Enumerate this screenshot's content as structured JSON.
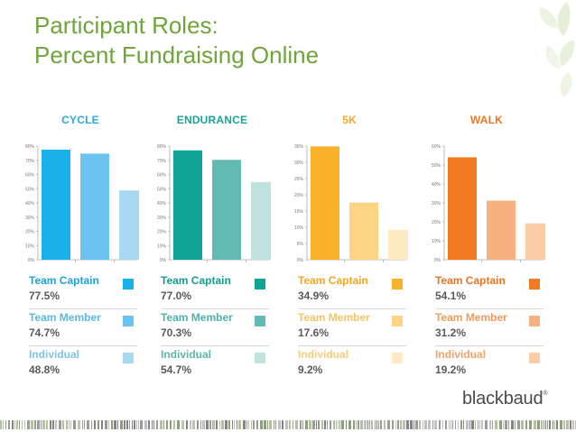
{
  "slide": {
    "title_line1": "Participant Roles:",
    "title_line2": "Percent Fundraising Online",
    "logo_text": "blackbaud",
    "logo_mark": "®",
    "title_color": "#6fa53a"
  },
  "chart_data": [
    {
      "type": "bar",
      "title": "CYCLE",
      "title_color": "#2aa9de",
      "categories": [
        "Team Captain",
        "Team Member",
        "Individual"
      ],
      "values": [
        77.5,
        74.7,
        48.8
      ],
      "value_labels": [
        "77.5%",
        "74.7%",
        "48.8%"
      ],
      "colors": [
        "#1ab0ea",
        "#6bc3ef",
        "#a9d9f0"
      ],
      "label_colors": [
        "#1fa3dd",
        "#5eb8e6",
        "#7fc3e6"
      ],
      "ylim": [
        0,
        80
      ],
      "yticks": [
        "0%",
        "10%",
        "20%",
        "30%",
        "40%",
        "50%",
        "60%",
        "70%",
        "80%"
      ],
      "tick_values": [
        0,
        10,
        20,
        30,
        40,
        50,
        60,
        70,
        80
      ]
    },
    {
      "type": "bar",
      "title": "ENDURANCE",
      "title_color": "#17a598",
      "categories": [
        "Team Captain",
        "Team Member",
        "Individual"
      ],
      "values": [
        77.0,
        70.3,
        54.7
      ],
      "value_labels": [
        "77.0%",
        "70.3%",
        "54.7%"
      ],
      "colors": [
        "#0fa596",
        "#62bab2",
        "#bfe2de"
      ],
      "label_colors": [
        "#129d90",
        "#4fb1a8",
        "#5cb8ae"
      ],
      "ylim": [
        0,
        80
      ],
      "yticks": [
        "0%",
        "10%",
        "20%",
        "30%",
        "40%",
        "50%",
        "60%",
        "70%",
        "80%"
      ],
      "tick_values": [
        0,
        10,
        20,
        30,
        40,
        50,
        60,
        70,
        80
      ]
    },
    {
      "type": "bar",
      "title": "5K",
      "title_color": "#f6a623",
      "categories": [
        "Team Captain",
        "Team Member",
        "Individual"
      ],
      "values": [
        34.9,
        17.6,
        9.2
      ],
      "value_labels": [
        "34.9%",
        "17.6%",
        "9.2%"
      ],
      "colors": [
        "#fbb22b",
        "#fdd384",
        "#feebc6"
      ],
      "label_colors": [
        "#f5a623",
        "#f8c463",
        "#f8cc7a"
      ],
      "ylim": [
        0,
        35
      ],
      "yticks": [
        "0%",
        "5%",
        "10%",
        "15%",
        "20%",
        "25%",
        "30%",
        "35%"
      ],
      "tick_values": [
        0,
        5,
        10,
        15,
        20,
        25,
        30,
        35
      ]
    },
    {
      "type": "bar",
      "title": "WALK",
      "title_color": "#ee7623",
      "categories": [
        "Team Captain",
        "Team Member",
        "Individual"
      ],
      "values": [
        54.1,
        31.2,
        19.2
      ],
      "value_labels": [
        "54.1%",
        "31.2%",
        "19.2%"
      ],
      "colors": [
        "#f07b22",
        "#f7b07f",
        "#fbcca6"
      ],
      "label_colors": [
        "#ec7421",
        "#f39a5c",
        "#f2a269"
      ],
      "ylim": [
        0,
        60
      ],
      "yticks": [
        "0%",
        "10%",
        "20%",
        "30%",
        "40%",
        "50%",
        "60%"
      ],
      "tick_values": [
        0,
        10,
        20,
        30,
        40,
        50,
        60
      ]
    }
  ]
}
